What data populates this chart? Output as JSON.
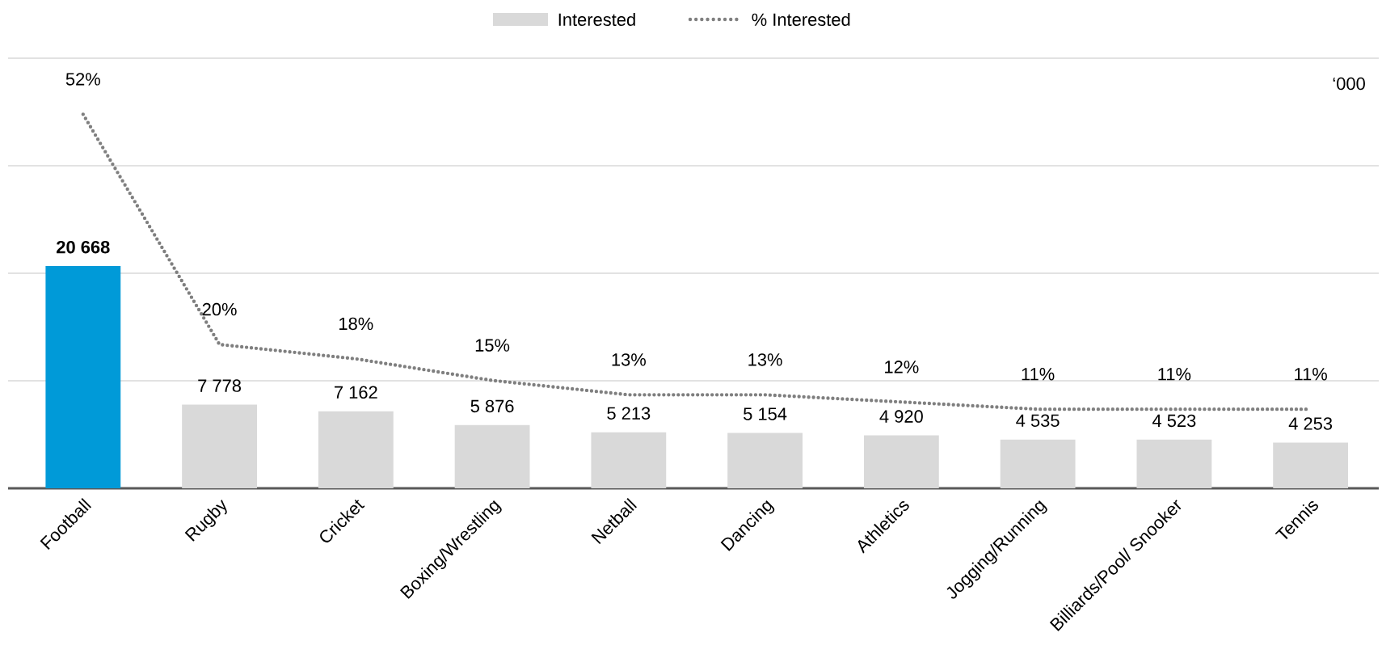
{
  "chart_data": {
    "type": "bar",
    "categories": [
      "Football",
      "Rugby",
      "Cricket",
      "Boxing/Wrestling",
      "Netball",
      "Dancing",
      "Athletics",
      "Jogging/Running",
      "Billiards/Pool/ Snooker",
      "Tennis"
    ],
    "ylim": [
      0,
      40000
    ],
    "yticks": [
      {
        "value": 0,
        "label": null
      },
      {
        "value": 10000,
        "label": null
      },
      {
        "value": 20000,
        "label": null
      },
      {
        "value": 30000,
        "label": null
      },
      {
        "value": 40000,
        "label": null
      }
    ],
    "tick_labels": "x",
    "grid": "y",
    "legend": "top",
    "annotations": [
      "‘000"
    ],
    "series": [
      {
        "name": "Interested",
        "colors": [
          "#009ad8",
          "#d9d9d9",
          "#d9d9d9",
          "#d9d9d9",
          "#d9d9d9",
          "#d9d9d9",
          "#d9d9d9",
          "#d9d9d9",
          "#d9d9d9",
          "#d9d9d9"
        ],
        "values": [
          20668,
          7778,
          7162,
          5876,
          5213,
          5154,
          4920,
          4535,
          4523,
          4253
        ],
        "value_labels": [
          "**20 668**",
          "7 778",
          "7 162",
          "5 876",
          "5 213",
          "5 154",
          "4 920",
          "4 535",
          "4 523",
          "4 253"
        ]
      },
      {
        "name": "% Interested",
        "type": "line",
        "axis": "y2",
        "color": "#7f7f7f",
        "line_style": "dotted",
        "values": [
          52,
          20,
          18,
          15,
          13,
          13,
          12,
          11,
          11,
          11
        ],
        "value_labels": [
          "52%",
          "20%",
          "18%",
          "15%",
          "13%",
          "13%",
          "12%",
          "11%",
          "11%",
          "11%"
        ]
      }
    ]
  }
}
